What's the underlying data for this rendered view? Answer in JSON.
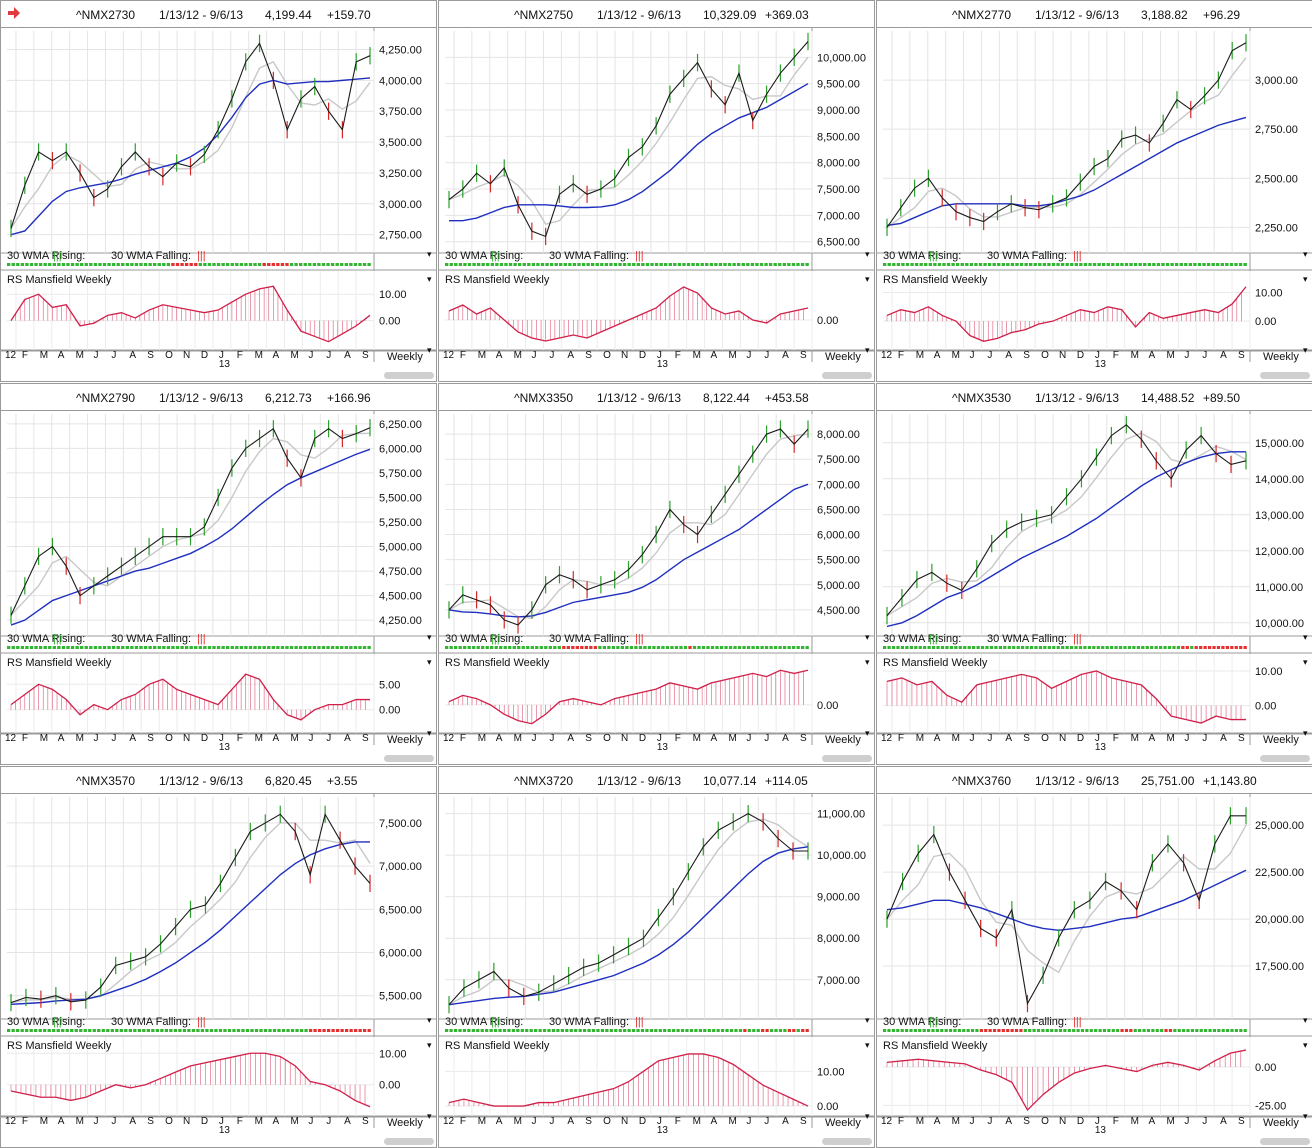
{
  "range": "1/13/12 - 9/6/13",
  "frequency": "Weekly",
  "wma_label_rising": "30 WMA Rising:",
  "wma_label_falling": "30 WMA Falling:",
  "rs_label": "RS Mansfield Weekly",
  "months_labels": [
    "F",
    "M",
    "A",
    "M",
    "J",
    "J",
    "A",
    "S",
    "O",
    "N",
    "D",
    "J",
    "F",
    "M",
    "A",
    "M",
    "J",
    "J",
    "A",
    "S"
  ],
  "year_labels": [
    "12",
    "13"
  ],
  "colors": {
    "price_line": "#1a1a1a",
    "sma_fast": "#c8c8c8",
    "sma_slow": "#1f2fbf",
    "rs_line": "#d0204a",
    "up_bar": "#2ca02c",
    "down_bar": "#d62728",
    "wma_green": "#33b533",
    "wma_red": "#e53030",
    "arrow": "#e0393e"
  },
  "chart_data": [
    {
      "type": "line",
      "symbol": "^NMX2730",
      "close": "4,199.44",
      "change": "+159.70",
      "x_range": [
        "1/13/12",
        "9/6/13"
      ],
      "price_ticks": [
        "4,250.00",
        "4,000.00",
        "3,750.00",
        "3,500.00",
        "3,250.00",
        "3,000.00",
        "2,750.00"
      ],
      "ylim": [
        2650,
        4400
      ],
      "rs_ticks": [
        "10.00",
        "0.00"
      ],
      "series": [
        {
          "values": [
            2800,
            3150,
            3420,
            3350,
            3420,
            3250,
            3050,
            3120,
            3300,
            3420,
            3300,
            3220,
            3330,
            3300,
            3400,
            3600,
            3850,
            4150,
            4300,
            4000,
            3600,
            3850,
            3950,
            3750,
            3600,
            4150,
            4200
          ]
        },
        {
          "values": [
            2750,
            2780,
            2900,
            3020,
            3100,
            3130,
            3150,
            3170,
            3200,
            3240,
            3270,
            3300,
            3330,
            3380,
            3450,
            3560,
            3700,
            3860,
            3970,
            4000,
            3970,
            3980,
            3990,
            3990,
            4000,
            4010,
            4020
          ]
        }
      ],
      "rs_values": [
        0,
        8,
        10,
        5,
        6,
        -2,
        -1,
        2,
        3,
        1,
        4,
        6,
        5,
        4,
        3,
        4,
        7,
        10,
        12,
        13,
        4,
        -4,
        -6,
        -8,
        -5,
        -2,
        2
      ],
      "wma_flags": "ggggggggggggggggggggggggggggggggggggrrrrrrggggggggggggggrrrrrrgggggggggggggggggg"
    },
    {
      "type": "line",
      "symbol": "^NMX2750",
      "close": "10,329.09",
      "change": "+369.03",
      "x_range": [
        "1/13/12",
        "9/6/13"
      ],
      "price_ticks": [
        "10,000.00",
        "9,500.00",
        "9,000.00",
        "8,500.00",
        "8,000.00",
        "7,500.00",
        "7,000.00",
        "6,500.00"
      ],
      "ylim": [
        6400,
        10500
      ],
      "rs_ticks": [
        "0.00"
      ],
      "series": [
        {
          "values": [
            7300,
            7500,
            7800,
            7600,
            7900,
            7200,
            6700,
            6600,
            7400,
            7600,
            7400,
            7500,
            7700,
            8100,
            8300,
            8700,
            9300,
            9600,
            9900,
            9400,
            9100,
            9700,
            8800,
            9300,
            9700,
            10000,
            10300
          ]
        },
        {
          "values": [
            6900,
            6900,
            6950,
            7050,
            7150,
            7200,
            7200,
            7200,
            7180,
            7150,
            7150,
            7160,
            7200,
            7300,
            7450,
            7650,
            7850,
            8100,
            8350,
            8550,
            8700,
            8850,
            8950,
            9050,
            9200,
            9350,
            9500
          ]
        }
      ],
      "rs_values": [
        3,
        5,
        2,
        4,
        0,
        -4,
        -6,
        -7,
        -6,
        -5,
        -6,
        -4,
        -2,
        0,
        2,
        4,
        8,
        11,
        9,
        4,
        2,
        3,
        0,
        -1,
        2,
        3,
        4
      ],
      "wma_flags": "gggggggggggggggggggggggggggggggggggggggggggggggggggggggggggggggggggggggggggggggg"
    },
    {
      "type": "line",
      "symbol": "^NMX2770",
      "close": "3,188.82",
      "change": "+96.29",
      "x_range": [
        "1/13/12",
        "9/6/13"
      ],
      "price_ticks": [
        "3,000.00",
        "2,750.00",
        "2,500.00",
        "2,250.00"
      ],
      "ylim": [
        2150,
        3250
      ],
      "rs_ticks": [
        "10.00",
        "0.00"
      ],
      "series": [
        {
          "values": [
            2250,
            2350,
            2450,
            2500,
            2400,
            2330,
            2300,
            2280,
            2330,
            2370,
            2350,
            2340,
            2370,
            2400,
            2480,
            2560,
            2600,
            2700,
            2720,
            2680,
            2780,
            2900,
            2850,
            2920,
            3000,
            3150,
            3190
          ]
        },
        {
          "values": [
            2260,
            2270,
            2300,
            2330,
            2360,
            2370,
            2370,
            2370,
            2370,
            2370,
            2360,
            2360,
            2370,
            2390,
            2410,
            2440,
            2480,
            2520,
            2560,
            2600,
            2640,
            2680,
            2710,
            2740,
            2770,
            2790,
            2810
          ]
        }
      ],
      "rs_values": [
        2,
        4,
        3,
        5,
        2,
        0,
        -5,
        -7,
        -6,
        -4,
        -3,
        -1,
        0,
        2,
        4,
        3,
        5,
        4,
        -2,
        3,
        1,
        2,
        3,
        4,
        3,
        6,
        12
      ],
      "wma_flags": "gggggggggggggggggggggggggggggggggggggggggggggggggggggggggggggggggggggggggggggggg"
    },
    {
      "type": "line",
      "symbol": "^NMX2790",
      "close": "6,212.73",
      "change": "+166.96",
      "x_range": [
        "1/13/12",
        "9/6/13"
      ],
      "price_ticks": [
        "6,250.00",
        "6,000.00",
        "5,750.00",
        "5,500.00",
        "5,250.00",
        "5,000.00",
        "4,750.00",
        "4,500.00",
        "4,250.00"
      ],
      "ylim": [
        4150,
        6350
      ],
      "rs_ticks": [
        "5.00",
        "0.00"
      ],
      "series": [
        {
          "values": [
            4300,
            4600,
            4900,
            5000,
            4800,
            4500,
            4600,
            4700,
            4800,
            4900,
            5000,
            5100,
            5100,
            5100,
            5200,
            5500,
            5800,
            6000,
            6100,
            6200,
            5900,
            5700,
            6100,
            6200,
            6100,
            6150,
            6210
          ]
        },
        {
          "values": [
            4200,
            4250,
            4350,
            4450,
            4500,
            4550,
            4600,
            4650,
            4700,
            4750,
            4780,
            4830,
            4880,
            4930,
            5000,
            5080,
            5180,
            5300,
            5420,
            5530,
            5630,
            5700,
            5760,
            5820,
            5880,
            5940,
            5990
          ]
        }
      ],
      "rs_values": [
        1,
        3,
        5,
        4,
        2,
        -1,
        1,
        0,
        2,
        3,
        5,
        6,
        4,
        3,
        2,
        1,
        4,
        7,
        6,
        2,
        -1,
        -2,
        0,
        1,
        1,
        2,
        2
      ],
      "wma_flags": "gggggggggggggggggggggggggggggggggggggggggggggggggggggggggggggggggggggggggggggggg"
    },
    {
      "type": "line",
      "symbol": "^NMX3350",
      "close": "8,122.44",
      "change": "+453.58",
      "x_range": [
        "1/13/12",
        "9/6/13"
      ],
      "price_ticks": [
        "8,000.00",
        "7,500.00",
        "7,000.00",
        "6,500.00",
        "6,000.00",
        "5,500.00",
        "5,000.00",
        "4,500.00"
      ],
      "ylim": [
        4100,
        8400
      ],
      "rs_ticks": [
        "0.00"
      ],
      "series": [
        {
          "values": [
            4500,
            4800,
            4700,
            4600,
            4300,
            4200,
            4500,
            5000,
            5200,
            5100,
            4900,
            5000,
            5100,
            5300,
            5600,
            6000,
            6500,
            6200,
            6000,
            6400,
            6800,
            7200,
            7600,
            8000,
            8100,
            7800,
            8100
          ]
        },
        {
          "values": [
            4500,
            4460,
            4450,
            4420,
            4380,
            4360,
            4380,
            4450,
            4550,
            4650,
            4700,
            4750,
            4800,
            4850,
            4950,
            5100,
            5300,
            5500,
            5650,
            5800,
            5950,
            6100,
            6300,
            6500,
            6700,
            6900,
            7000
          ]
        }
      ],
      "rs_values": [
        1,
        3,
        2,
        0,
        -3,
        -5,
        -6,
        -3,
        1,
        2,
        1,
        0,
        2,
        3,
        4,
        5,
        7,
        6,
        5,
        7,
        8,
        9,
        10,
        9,
        11,
        10,
        11
      ],
      "wma_flags": "ggggggggggggggggggggggggggrrrrrrrrggggggggggggggggggggrgggggggggggggggggggggggggg"
    },
    {
      "type": "line",
      "symbol": "^NMX3530",
      "close": "14,488.52",
      "change": "+89.50",
      "x_range": [
        "1/13/12",
        "9/6/13"
      ],
      "price_ticks": [
        "15,000.00",
        "14,000.00",
        "13,000.00",
        "12,000.00",
        "11,000.00",
        "10,000.00"
      ],
      "ylim": [
        9800,
        15800
      ],
      "rs_ticks": [
        "10.00",
        "0.00"
      ],
      "series": [
        {
          "values": [
            10200,
            10700,
            11200,
            11400,
            11100,
            10900,
            11500,
            12200,
            12600,
            12800,
            12900,
            13000,
            13500,
            14000,
            14600,
            15200,
            15500,
            15100,
            14500,
            14000,
            14800,
            15200,
            14700,
            14400,
            14500
          ]
        },
        {
          "values": [
            9900,
            10000,
            10200,
            10450,
            10700,
            10850,
            11050,
            11300,
            11550,
            11800,
            12000,
            12200,
            12400,
            12650,
            12900,
            13200,
            13500,
            13800,
            14050,
            14250,
            14450,
            14600,
            14700,
            14750,
            14750
          ]
        }
      ],
      "rs_values": [
        7,
        8,
        6,
        7,
        3,
        1,
        6,
        7,
        8,
        9,
        8,
        5,
        7,
        9,
        10,
        8,
        7,
        6,
        2,
        -3,
        -4,
        -5,
        -3,
        -4,
        -4
      ],
      "wma_flags": "gggggggggggggggggggggggggggggggggggggggggggggggggggggggggggggggggggrrgrrrrrrrrrrrr"
    },
    {
      "type": "line",
      "symbol": "^NMX3570",
      "close": "6,820.45",
      "change": "+3.55",
      "x_range": [
        "1/13/12",
        "9/6/13"
      ],
      "price_ticks": [
        "7,500.00",
        "7,000.00",
        "6,500.00",
        "6,000.00",
        "5,500.00"
      ],
      "ylim": [
        5300,
        7800
      ],
      "rs_ticks": [
        "10.00",
        "0.00"
      ],
      "series": [
        {
          "values": [
            5420,
            5480,
            5460,
            5500,
            5430,
            5450,
            5600,
            5850,
            5900,
            5950,
            6100,
            6300,
            6500,
            6550,
            6800,
            7100,
            7400,
            7500,
            7600,
            7400,
            6900,
            7600,
            7300,
            7000,
            6800
          ]
        },
        {
          "values": [
            5400,
            5410,
            5420,
            5440,
            5450,
            5460,
            5500,
            5560,
            5620,
            5690,
            5780,
            5880,
            6000,
            6120,
            6260,
            6420,
            6580,
            6740,
            6900,
            7030,
            7130,
            7200,
            7250,
            7280,
            7280
          ]
        }
      ],
      "rs_values": [
        -2,
        -3,
        -4,
        -4,
        -5,
        -4,
        -2,
        0,
        -1,
        0,
        2,
        4,
        6,
        7,
        8,
        9,
        10,
        10,
        9,
        6,
        1,
        0,
        -2,
        -5,
        -7
      ],
      "wma_flags": "gggggggggggggggggggggggggggggggggggggggggggggggggggggggggggggggggggrrrrrrrrrrrrrr"
    },
    {
      "type": "line",
      "symbol": "^NMX3720",
      "close": "10,077.14",
      "change": "+114.05",
      "x_range": [
        "1/13/12",
        "9/6/13"
      ],
      "price_ticks": [
        "11,000.00",
        "10,000.00",
        "9,000.00",
        "8,000.00",
        "7,000.00"
      ],
      "ylim": [
        6200,
        11400
      ],
      "rs_ticks": [
        "10.00",
        "0.00"
      ],
      "series": [
        {
          "values": [
            6400,
            6800,
            7000,
            7200,
            6800,
            6600,
            6700,
            6900,
            7100,
            7300,
            7400,
            7600,
            7800,
            8000,
            8500,
            9000,
            9600,
            10200,
            10600,
            10800,
            11000,
            10800,
            10400,
            10100,
            10100
          ]
        },
        {
          "values": [
            6400,
            6450,
            6500,
            6550,
            6580,
            6600,
            6650,
            6700,
            6800,
            6900,
            7000,
            7100,
            7250,
            7400,
            7600,
            7850,
            8150,
            8500,
            8850,
            9200,
            9550,
            9850,
            10050,
            10150,
            10200
          ]
        }
      ],
      "rs_values": [
        1,
        2,
        1,
        0,
        0,
        0,
        1,
        1,
        2,
        3,
        4,
        5,
        7,
        10,
        13,
        14,
        15,
        15,
        14,
        12,
        9,
        6,
        4,
        2,
        0
      ],
      "wma_flags": "gggggggggggggggggggggggggggggggggggggggggggggggggggggggggggggggggggrgggrrggggrrgrr"
    },
    {
      "type": "line",
      "symbol": "^NMX3760",
      "close": "25,751.00",
      "change": "+1,143.80",
      "x_range": [
        "1/13/12",
        "9/6/13"
      ],
      "price_ticks": [
        "25,000.00",
        "22,500.00",
        "20,000.00",
        "17,500.00"
      ],
      "ylim": [
        15000,
        26500
      ],
      "rs_ticks": [
        "0.00",
        "-25.00"
      ],
      "series": [
        {
          "values": [
            20000,
            22000,
            23500,
            24500,
            22500,
            21000,
            19500,
            19000,
            20500,
            15500,
            17000,
            19000,
            20500,
            21000,
            22000,
            21500,
            20500,
            23000,
            24000,
            23000,
            21000,
            24000,
            25500,
            25500
          ]
        },
        {
          "values": [
            20500,
            20600,
            20800,
            21000,
            21000,
            20800,
            20600,
            20300,
            20000,
            19700,
            19500,
            19400,
            19500,
            19600,
            19800,
            20000,
            20100,
            20400,
            20700,
            21000,
            21400,
            21800,
            22200,
            22600
          ]
        }
      ],
      "rs_values": [
        3,
        4,
        5,
        4,
        3,
        2,
        -2,
        -5,
        -10,
        -28,
        -18,
        -10,
        -4,
        -1,
        1,
        -1,
        -3,
        1,
        3,
        1,
        -2,
        4,
        9,
        11
      ],
      "wma_flags": "ggggggggggggggggggggggrrrrrrrrrrggggggggggggggggggggggrrrgggggggrrggggggggggggggggg"
    }
  ]
}
